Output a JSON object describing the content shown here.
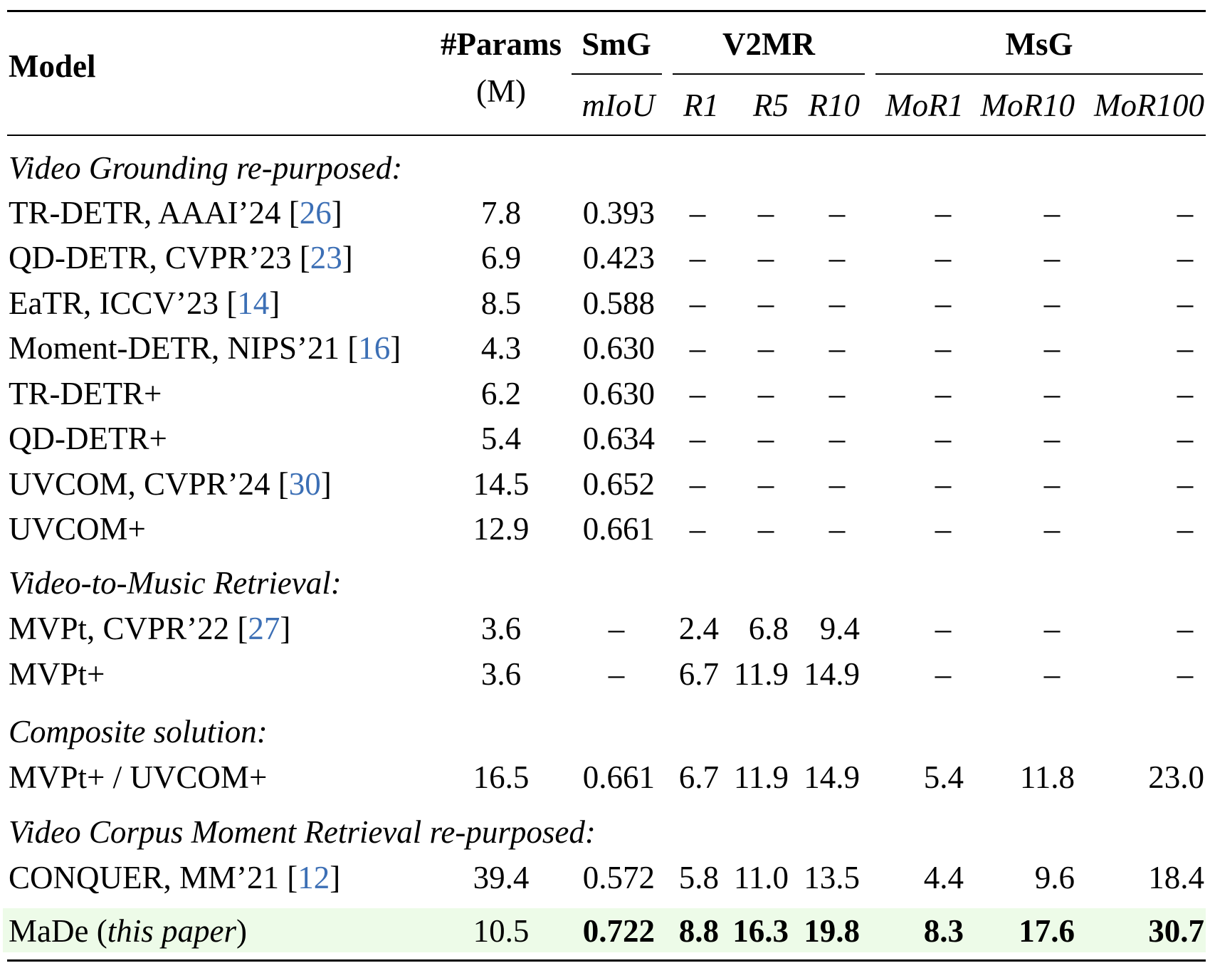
{
  "header": {
    "model": "Model",
    "params_line1": "#Params",
    "params_line2": "(M)",
    "smg": "SmG",
    "v2mr": "V2MR",
    "msg": "MsG",
    "miou": "mIoU",
    "r1": "R1",
    "r5": "R5",
    "r10": "R10",
    "mor1": "MoR1",
    "mor10": "MoR10",
    "mor100": "MoR100"
  },
  "sections": [
    {
      "title": "Video Grounding re-purposed:",
      "rows": [
        {
          "name": "TR-DETR, AAAI’24 [",
          "cite": "26",
          "close": "]",
          "params": "7.8",
          "miou": "0.393",
          "r1": "–",
          "r5": "–",
          "r10": "–",
          "mor1": "–",
          "mor10": "–",
          "mor100": "–"
        },
        {
          "name": "QD-DETR, CVPR’23 [",
          "cite": "23",
          "close": "]",
          "params": "6.9",
          "miou": "0.423",
          "r1": "–",
          "r5": "–",
          "r10": "–",
          "mor1": "–",
          "mor10": "–",
          "mor100": "–"
        },
        {
          "name": "EaTR, ICCV’23 [",
          "cite": "14",
          "close": "]",
          "params": "8.5",
          "miou": "0.588",
          "r1": "–",
          "r5": "–",
          "r10": "–",
          "mor1": "–",
          "mor10": "–",
          "mor100": "–"
        },
        {
          "name": "Moment-DETR, NIPS’21 [",
          "cite": "16",
          "close": "]",
          "params": "4.3",
          "miou": "0.630",
          "r1": "–",
          "r5": "–",
          "r10": "–",
          "mor1": "–",
          "mor10": "–",
          "mor100": "–"
        },
        {
          "name": "TR-DETR+",
          "cite": "",
          "close": "",
          "params": "6.2",
          "miou": "0.630",
          "r1": "–",
          "r5": "–",
          "r10": "–",
          "mor1": "–",
          "mor10": "–",
          "mor100": "–"
        },
        {
          "name": "QD-DETR+",
          "cite": "",
          "close": "",
          "params": "5.4",
          "miou": "0.634",
          "r1": "–",
          "r5": "–",
          "r10": "–",
          "mor1": "–",
          "mor10": "–",
          "mor100": "–"
        },
        {
          "name": "UVCOM, CVPR’24 [",
          "cite": "30",
          "close": "]",
          "params": "14.5",
          "miou": "0.652",
          "r1": "–",
          "r5": "–",
          "r10": "–",
          "mor1": "–",
          "mor10": "–",
          "mor100": "–"
        },
        {
          "name": "UVCOM+",
          "cite": "",
          "close": "",
          "params": "12.9",
          "miou": "0.661",
          "r1": "–",
          "r5": "–",
          "r10": "–",
          "mor1": "–",
          "mor10": "–",
          "mor100": "–"
        }
      ]
    },
    {
      "title": "Video-to-Music Retrieval:",
      "rows": [
        {
          "name": "MVPt, CVPR’22 [",
          "cite": "27",
          "close": "]",
          "params": "3.6",
          "miou": "–",
          "r1": "2.4",
          "r5": "6.8",
          "r10": "9.4",
          "mor1": "–",
          "mor10": "–",
          "mor100": "–"
        },
        {
          "name": "MVPt+",
          "cite": "",
          "close": "",
          "params": "3.6",
          "miou": "–",
          "r1": "6.7",
          "r5": "11.9",
          "r10": "14.9",
          "mor1": "–",
          "mor10": "–",
          "mor100": "–"
        }
      ]
    },
    {
      "title": "Composite solution:",
      "rows": [
        {
          "name": "MVPt+ / UVCOM+",
          "cite": "",
          "close": "",
          "params": "16.5",
          "miou": "0.661",
          "r1": "6.7",
          "r5": "11.9",
          "r10": "14.9",
          "mor1": "5.4",
          "mor10": "11.8",
          "mor100": "23.0"
        }
      ]
    },
    {
      "title": "Video Corpus Moment Retrieval re-purposed:",
      "rows": [
        {
          "name": "CONQUER, MM’21 [",
          "cite": "12",
          "close": "]",
          "params": "39.4",
          "miou": "0.572",
          "r1": "5.8",
          "r5": "11.0",
          "r10": "13.5",
          "mor1": "4.4",
          "mor10": "9.6",
          "mor100": "18.4"
        }
      ]
    }
  ],
  "ours": {
    "name": "MaDe (",
    "name_italic": "this paper",
    "name_close": ")",
    "params": "10.5",
    "miou": "0.722",
    "r1": "8.8",
    "r5": "16.3",
    "r10": "19.8",
    "mor1": "8.3",
    "mor10": "17.6",
    "mor100": "30.7"
  },
  "colors": {
    "citation": "#3c6fb5",
    "highlight": "#edfbe8"
  }
}
